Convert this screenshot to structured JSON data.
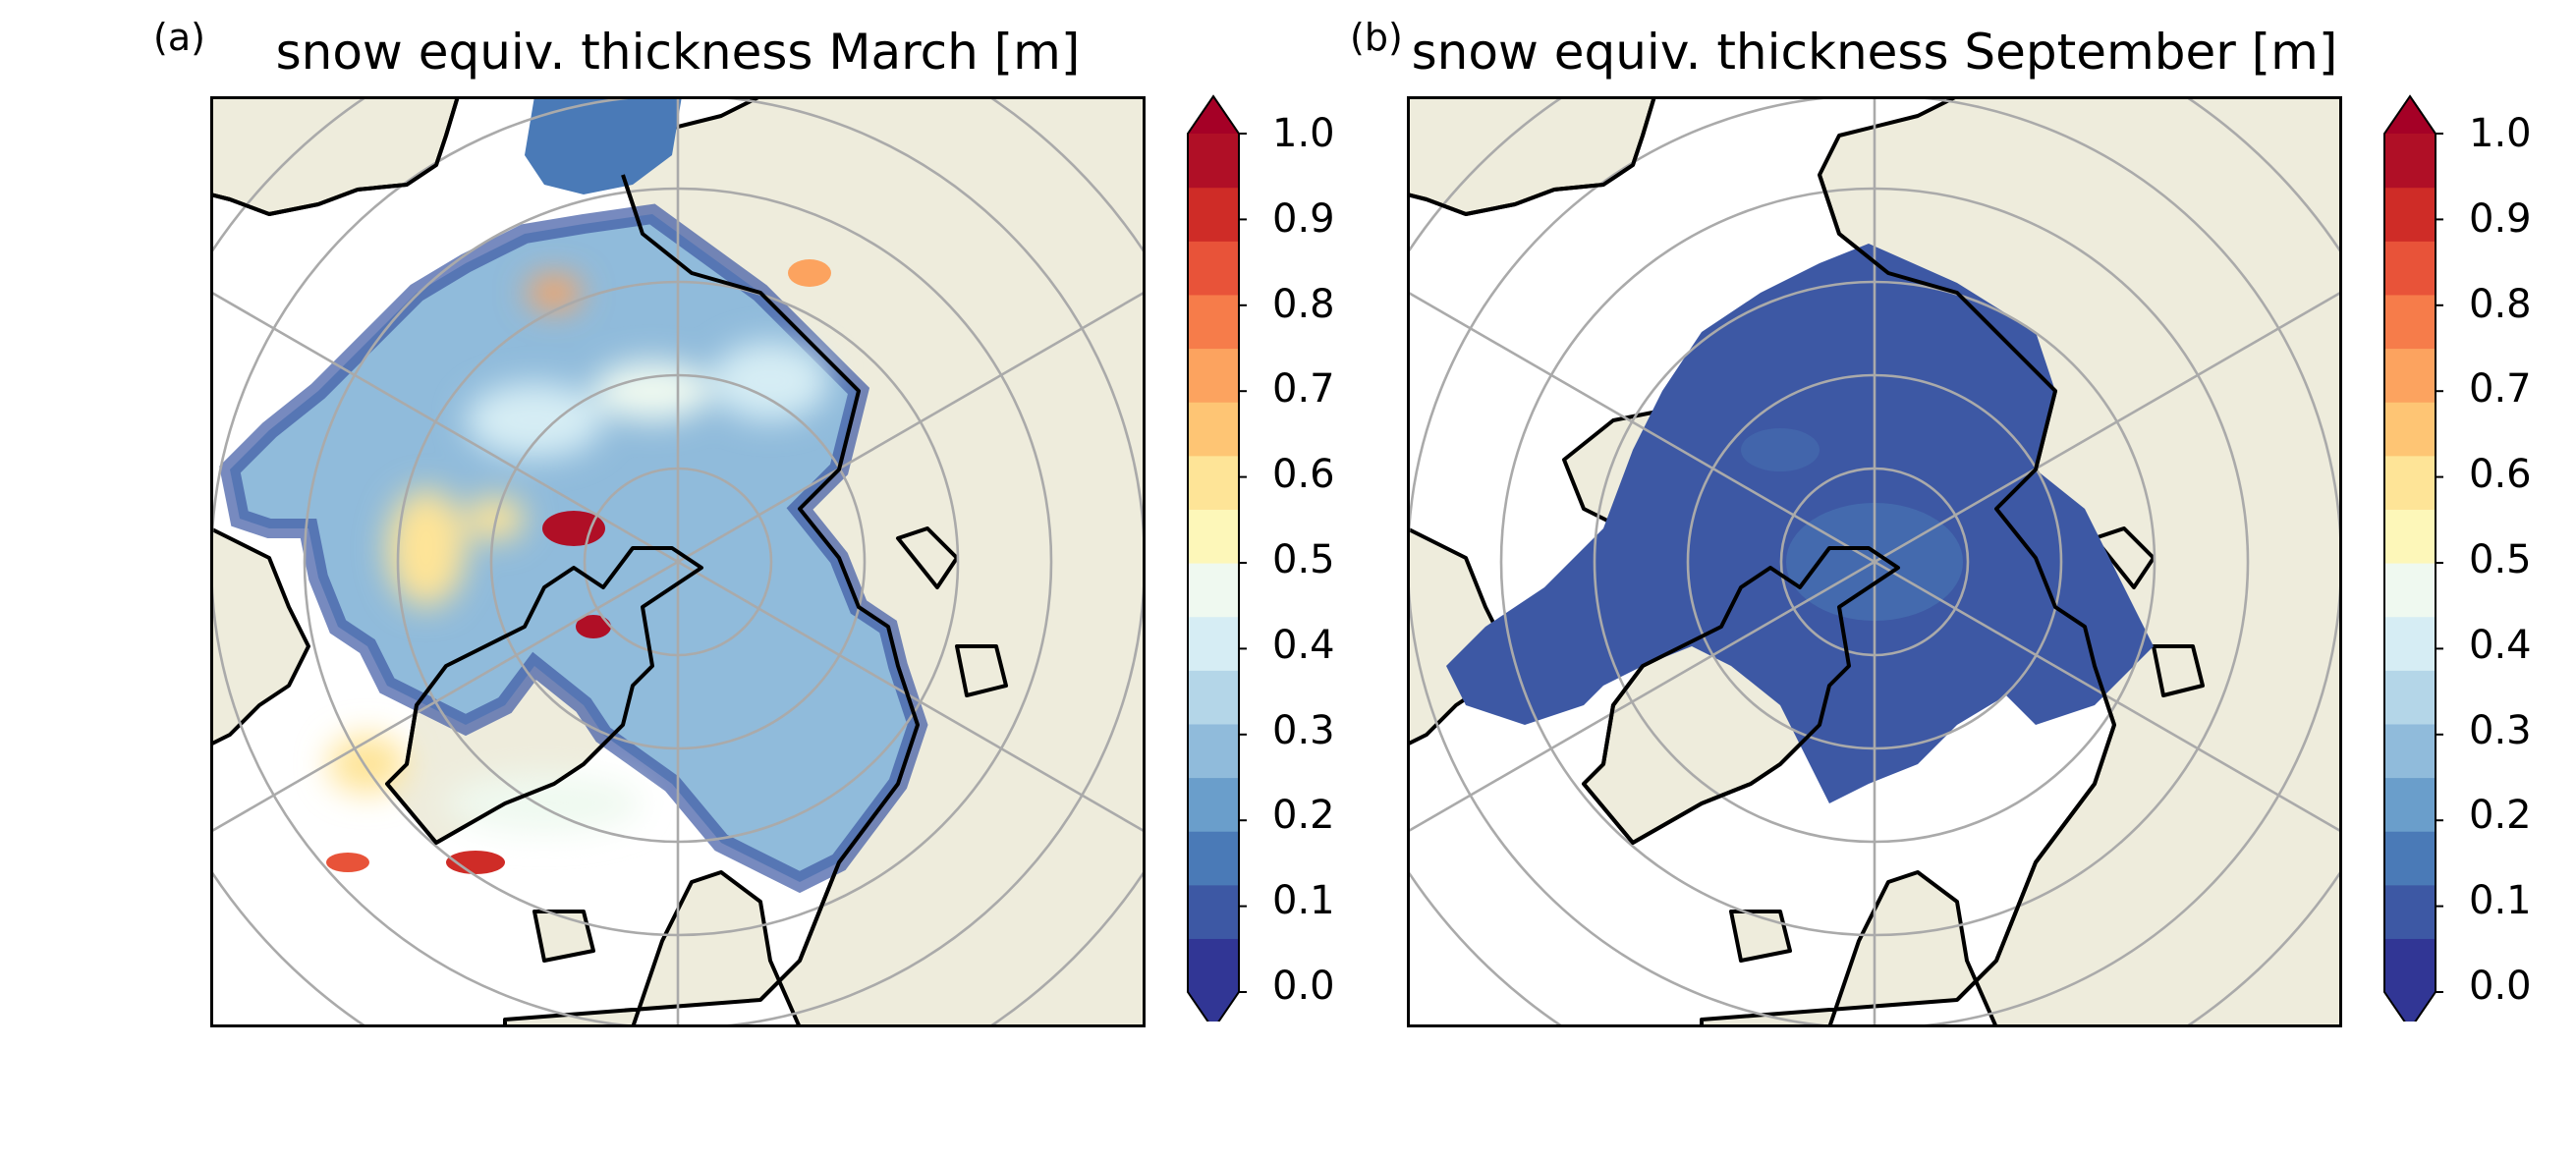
{
  "panels": [
    {
      "letter": "(a)",
      "title": "snow equiv. thickness March [m]",
      "field": "march",
      "colorbar": {
        "ticks": [
          "0.0",
          "0.1",
          "0.2",
          "0.3",
          "0.4",
          "0.5",
          "0.6",
          "0.7",
          "0.8",
          "0.9",
          "1.0"
        ],
        "vmin": 0.0,
        "vmax": 1.0,
        "extend": "both"
      }
    },
    {
      "letter": "(b)",
      "title": "snow equiv. thickness September [m]",
      "field": "september",
      "colorbar": {
        "ticks": [
          "0.0",
          "0.1",
          "0.2",
          "0.3",
          "0.4",
          "0.5",
          "0.6",
          "0.7",
          "0.8",
          "0.9",
          "1.0"
        ],
        "vmin": 0.0,
        "vmax": 1.0,
        "extend": "both"
      }
    }
  ],
  "colors": {
    "land": "#eeecdc",
    "gridlines": "#aaaaaa",
    "coastline": "#000000",
    "palette": [
      "#313695",
      "#3d58a4",
      "#4a7ab7",
      "#6a9ecb",
      "#90bbdb",
      "#b4d6e8",
      "#d6edf4",
      "#eff9f0",
      "#fdf7b9",
      "#fee497",
      "#fec574",
      "#fca35f",
      "#f67c4a",
      "#e85339",
      "#cf2c27",
      "#b00f26"
    ],
    "under": "#313695",
    "over": "#a50026"
  }
}
